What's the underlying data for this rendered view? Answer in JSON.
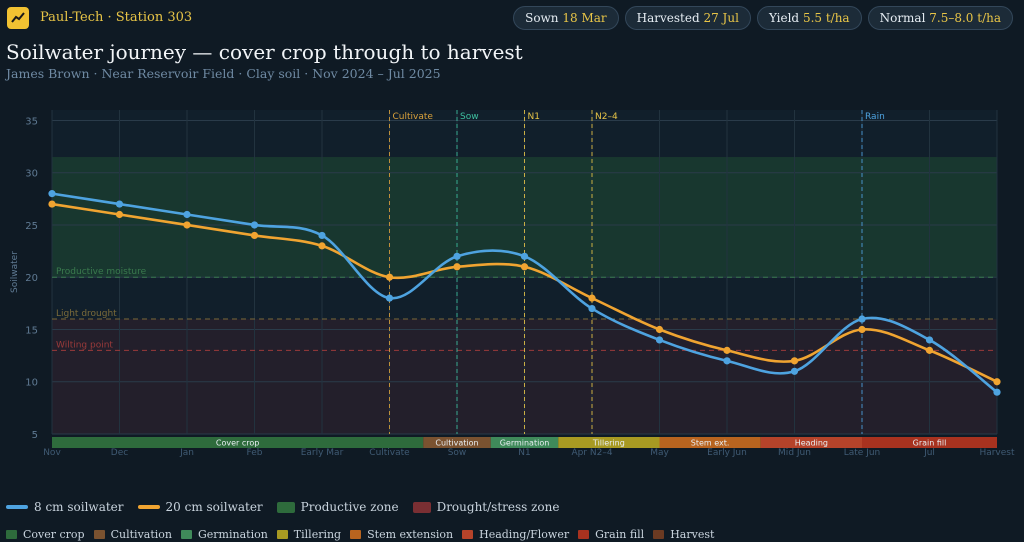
{
  "header": {
    "brand": "Paul-Tech · Station 303",
    "logo_icon": "trend-chart-icon",
    "pills": [
      {
        "label": "Sown",
        "value": "18 Mar"
      },
      {
        "label": "Harvested",
        "value": "27 Jul"
      },
      {
        "label": "Yield",
        "value": "5.5 t/ha"
      },
      {
        "label": "Normal",
        "value": "7.5–8.0 t/ha"
      }
    ]
  },
  "title": "Soilwater journey — cover crop through to harvest",
  "subtitle": "James Brown · Near Reservoir Field · Clay soil · Nov 2024 – Jul 2025",
  "chart_data": {
    "type": "line",
    "title": "Soilwater journey — cover crop through to harvest",
    "ylabel": "Soilwater",
    "xlabel": "",
    "ylim": [
      5,
      36
    ],
    "yticks": [
      5,
      10,
      15,
      20,
      25,
      30,
      35
    ],
    "grid": true,
    "categories": [
      "Nov",
      "Dec",
      "Jan",
      "Feb",
      "Early Mar",
      "Cultivate",
      "Sow",
      "N1",
      "Apr N2–4",
      "May",
      "Early Jun",
      "Mid Jun",
      "Late Jun",
      "Jul",
      "Harvest"
    ],
    "series": [
      {
        "name": "8 cm soilwater",
        "color": "#4ea3e0",
        "values": [
          28,
          27,
          26,
          25,
          24,
          18,
          22,
          22,
          17,
          14,
          12,
          11,
          16,
          14,
          9
        ]
      },
      {
        "name": "20 cm soilwater",
        "color": "#f0a431",
        "values": [
          27,
          26,
          25,
          24,
          23,
          20,
          21,
          21,
          18,
          15,
          13,
          12,
          15,
          13,
          10
        ]
      }
    ],
    "zones": [
      {
        "label": "Productive moisture",
        "from": 20,
        "to": 31.5,
        "line": 20,
        "color": "#3a7a4e"
      },
      {
        "label": "Light drought",
        "from": 5,
        "to": 16,
        "line": 16,
        "color": "#7a6a3a"
      },
      {
        "label": "Wilting point",
        "line": 13,
        "color": "#9a3a3a"
      }
    ],
    "events": [
      {
        "label": "Cultivate",
        "x": 5,
        "color": "#d9a13b"
      },
      {
        "label": "Sow",
        "x": 6,
        "color": "#3ec0a0"
      },
      {
        "label": "N1",
        "x": 7,
        "color": "#e8c547"
      },
      {
        "label": "N2–4",
        "x": 8,
        "color": "#e8c547"
      },
      {
        "label": "Rain",
        "x": 12,
        "color": "#4ea3e0"
      }
    ],
    "stages": [
      {
        "label": "Cover crop",
        "from": 0,
        "to": 5.5,
        "color": "#2e6b3c"
      },
      {
        "label": "Cultivation",
        "from": 5.5,
        "to": 6.5,
        "color": "#7a5230"
      },
      {
        "label": "Germination",
        "from": 6.5,
        "to": 7.5,
        "color": "#3f8a5a"
      },
      {
        "label": "Tillering",
        "from": 7.5,
        "to": 9,
        "color": "#a89a22"
      },
      {
        "label": "Stem ext.",
        "from": 9,
        "to": 10.5,
        "color": "#b8641f"
      },
      {
        "label": "Heading",
        "from": 10.5,
        "to": 12,
        "color": "#b5432a"
      },
      {
        "label": "Grain fill",
        "from": 12,
        "to": 14,
        "color": "#a8321f"
      }
    ]
  },
  "legend": {
    "main": [
      {
        "label": "8 cm soilwater",
        "kind": "line",
        "color": "#4ea3e0"
      },
      {
        "label": "20 cm soilwater",
        "kind": "line",
        "color": "#f0a431"
      },
      {
        "label": "Productive zone",
        "kind": "box",
        "color": "#2e6b3c"
      },
      {
        "label": "Drought/stress zone",
        "kind": "box",
        "color": "#7a2f33"
      }
    ],
    "stages": [
      {
        "label": "Cover crop",
        "color": "#2e6b3c"
      },
      {
        "label": "Cultivation",
        "color": "#7a5230"
      },
      {
        "label": "Germination",
        "color": "#3f8a5a"
      },
      {
        "label": "Tillering",
        "color": "#a89a22"
      },
      {
        "label": "Stem extension",
        "color": "#b8641f"
      },
      {
        "label": "Heading/Flower",
        "color": "#b5432a"
      },
      {
        "label": "Grain fill",
        "color": "#a8321f"
      },
      {
        "label": "Harvest",
        "color": "#6b3a22"
      }
    ]
  }
}
